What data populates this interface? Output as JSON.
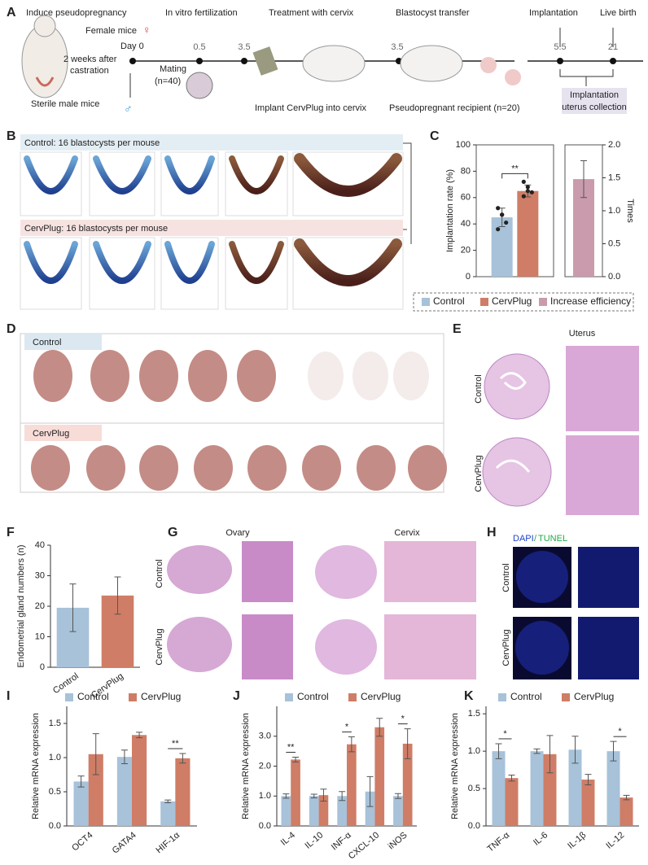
{
  "panel_labels": [
    "A",
    "B",
    "C",
    "D",
    "E",
    "F",
    "G",
    "H",
    "I",
    "J",
    "K"
  ],
  "panel_a": {
    "steps": [
      "Induce pseudopregnancy",
      "In vitro fertilization",
      "Treatment with cervix",
      "Blastocyst transfer",
      "Implantation",
      "Live birth"
    ],
    "female_mice": "Female mice",
    "female_symbol": "♀",
    "male_symbol": "♂",
    "day0": "Day 0",
    "castration": [
      "2 weeks after",
      "castration"
    ],
    "sterile": "Sterile male mice",
    "mating": [
      "Mating",
      "(n=40)"
    ],
    "days": [
      "0.5",
      "3.5",
      "3.5",
      "5.5",
      "21"
    ],
    "implant_note": "Implant CervPlug into cervix",
    "recipient": "Pseudopregnant recipient (n=20)",
    "collection": [
      "Implantation",
      "uterus collection"
    ]
  },
  "panel_b": {
    "control": "Control: 16 blastocysts per mouse",
    "cervplug": "CervPlug: 16 blastocysts per mouse"
  },
  "panel_d": {
    "control": "Control",
    "cervplug": "CervPlug"
  },
  "panel_e": {
    "title": "Uterus",
    "rows": [
      "Control",
      "CervPlug"
    ]
  },
  "panel_g": {
    "columns": [
      "Ovary",
      "Cervix"
    ],
    "rows": [
      "Control",
      "CervPlug"
    ]
  },
  "panel_h": {
    "dapi": "DAPI",
    "slash": "/",
    "tunel": "TUNEL",
    "rows": [
      "Control",
      "CervPlug"
    ]
  },
  "chart_data": [
    {
      "type": "bar",
      "categories": [
        null
      ],
      "y_label": "Implantation rate (%)",
      "y2_label": "Times",
      "ylim": [
        0,
        100
      ],
      "yticks": [
        0,
        20,
        40,
        60,
        80,
        100
      ],
      "y2lim": [
        0,
        2.0
      ],
      "y2ticks": [
        {
          "value": 0,
          "label": "0.0"
        },
        {
          "value": 0.5,
          "label": "0.5"
        },
        {
          "value": 1.0,
          "label": "1.0"
        },
        {
          "value": 1.5,
          "label": "1.5"
        },
        {
          "value": 2.0,
          "label": "2.0"
        }
      ],
      "significance": "**",
      "series": [
        {
          "name": "Control",
          "color": "#a7c2d9",
          "values": [
            45
          ],
          "errors": [
            7
          ],
          "points": [
            [
              52,
              47,
              41,
              36,
              47
            ]
          ]
        },
        {
          "name": "CervPlug",
          "color": "#cf7d66",
          "values": [
            65
          ],
          "errors": [
            4.5
          ],
          "points": [
            [
              72,
              68,
              64,
              61,
              65
            ]
          ]
        },
        {
          "name": "Increase efficiency",
          "color": "#c99bad",
          "values": [
            1.48
          ],
          "errors": [
            0.28
          ],
          "axis": "y2"
        }
      ]
    },
    {
      "type": "bar",
      "categories": [
        "Control",
        "CervPlug"
      ],
      "y_label": "Endometrial gland numbers (n)",
      "ylim": [
        0,
        40
      ],
      "yticks": [
        0,
        10,
        20,
        30,
        40
      ],
      "values": [
        19.5,
        23.5
      ],
      "errors": [
        7.8,
        6.1
      ],
      "colors": [
        "#a7c2d9",
        "#cf7d66"
      ]
    },
    {
      "type": "bar",
      "categories": [
        "OCT4",
        "GATA4",
        "HIF-1α"
      ],
      "y_label": "Relative mRNA expression",
      "ylim": [
        0,
        1.75
      ],
      "yticks": [
        {
          "value": 0,
          "label": "0.0"
        },
        {
          "value": 0.5,
          "label": "0.5"
        },
        {
          "value": 1.0,
          "label": "1.0"
        },
        {
          "value": 1.5,
          "label": "1.5"
        }
      ],
      "significance": [
        null,
        null,
        "**"
      ],
      "series": [
        {
          "name": "Control",
          "color": "#a7c2d9",
          "values": [
            0.65,
            1.01,
            0.36
          ],
          "errors": [
            0.08,
            0.1,
            0.02
          ]
        },
        {
          "name": "CervPlug",
          "color": "#cf7d66",
          "values": [
            1.05,
            1.33,
            0.99
          ],
          "errors": [
            0.3,
            0.04,
            0.07
          ]
        }
      ]
    },
    {
      "type": "bar",
      "categories": [
        "IL-4",
        "IL-10",
        "INF-α",
        "CXCL-10",
        "iNOS"
      ],
      "y_label": "Relative mRNA expression",
      "ylim": [
        0,
        4.0
      ],
      "yticks": [
        {
          "value": 0,
          "label": "0.0"
        },
        {
          "value": 1.0,
          "label": "1.0"
        },
        {
          "value": 2.0,
          "label": "2.0"
        },
        {
          "value": 3.0,
          "label": "3.0"
        }
      ],
      "significance": [
        "**",
        null,
        "*",
        null,
        "*"
      ],
      "series": [
        {
          "name": "Control",
          "color": "#a7c2d9",
          "values": [
            1.0,
            1.0,
            1.0,
            1.15,
            1.0
          ],
          "errors": [
            0.07,
            0.06,
            0.15,
            0.5,
            0.08
          ]
        },
        {
          "name": "CervPlug",
          "color": "#cf7d66",
          "values": [
            2.22,
            1.03,
            2.73,
            3.3,
            2.75
          ],
          "errors": [
            0.08,
            0.2,
            0.25,
            0.3,
            0.5
          ]
        }
      ]
    },
    {
      "type": "bar",
      "categories": [
        "TNF-α",
        "IL-6",
        "IL-1β",
        "IL-12"
      ],
      "y_label": "Relative mRNA expression",
      "ylim": [
        0,
        1.6
      ],
      "yticks": [
        {
          "value": 0,
          "label": "0.0"
        },
        {
          "value": 0.5,
          "label": "0.5"
        },
        {
          "value": 1.0,
          "label": "1.0"
        },
        {
          "value": 1.5,
          "label": "1.5"
        }
      ],
      "significance": [
        "*",
        null,
        null,
        "*"
      ],
      "series": [
        {
          "name": "Control",
          "color": "#a7c2d9",
          "values": [
            1.0,
            1.0,
            1.02,
            1.0
          ],
          "errors": [
            0.1,
            0.03,
            0.18,
            0.13
          ]
        },
        {
          "name": "CervPlug",
          "color": "#cf7d66",
          "values": [
            0.64,
            0.96,
            0.62,
            0.38
          ],
          "errors": [
            0.04,
            0.25,
            0.07,
            0.03
          ]
        }
      ]
    }
  ]
}
